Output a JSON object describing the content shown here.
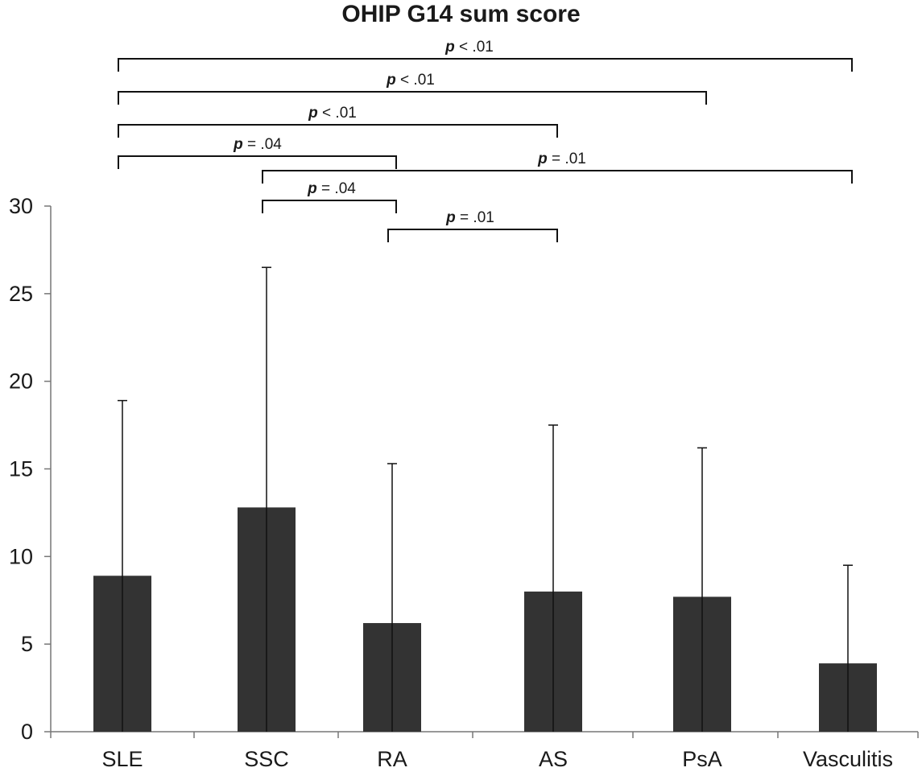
{
  "chart_data": {
    "type": "bar",
    "title": "OHIP G14 sum score",
    "categories": [
      "SLE",
      "SSC",
      "RA",
      "AS",
      "PsA",
      "Vasculitis"
    ],
    "values": [
      8.9,
      12.8,
      6.2,
      8.0,
      7.7,
      3.9
    ],
    "error_upper": [
      18.9,
      26.5,
      15.3,
      17.5,
      16.2,
      9.5
    ],
    "ylim": [
      0,
      30
    ],
    "yticks": [
      0,
      5,
      10,
      15,
      20,
      25,
      30
    ],
    "xlabel": "",
    "ylabel": "",
    "bar_color": "#333333",
    "grid": false,
    "significance": [
      {
        "from": 0,
        "to": 5,
        "p_symbol": "p",
        "relation": "<",
        "value": ".01"
      },
      {
        "from": 0,
        "to": 4,
        "p_symbol": "p",
        "relation": "<",
        "value": ".01"
      },
      {
        "from": 0,
        "to": 3,
        "p_symbol": "p",
        "relation": "<",
        "value": ".01"
      },
      {
        "from": 0,
        "to": 2,
        "p_symbol": "p",
        "relation": "=",
        "value": ".04"
      },
      {
        "from": 1,
        "to": 5,
        "p_symbol": "p",
        "relation": "=",
        "value": ".01"
      },
      {
        "from": 1,
        "to": 2,
        "p_symbol": "p",
        "relation": "=",
        "value": ".04"
      },
      {
        "from": 2,
        "to": 3,
        "p_symbol": "p",
        "relation": "=",
        "value": ".01"
      }
    ]
  }
}
